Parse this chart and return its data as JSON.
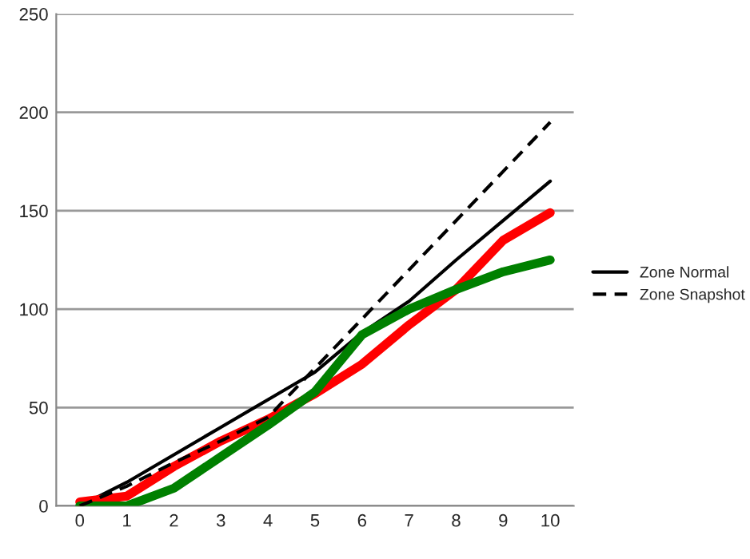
{
  "chart_data": {
    "type": "line",
    "categories": [
      "0",
      "1",
      "2",
      "3",
      "4",
      "5",
      "6",
      "7",
      "8",
      "9",
      "10"
    ],
    "series": [
      {
        "name": "Zone Normal",
        "color": "#000000",
        "line_style": "solid",
        "values": [
          0,
          12,
          26,
          40,
          54,
          68,
          88,
          104,
          125,
          145,
          165
        ]
      },
      {
        "name": "Zone Snapshot",
        "color": "#000000",
        "line_style": "dashed",
        "values": [
          0,
          10,
          22,
          33,
          45,
          70,
          95,
          120,
          145,
          170,
          195
        ]
      },
      {
        "color": "#ff0000",
        "line_style": "solid",
        "values": [
          2,
          5,
          20,
          33,
          44,
          57,
          72,
          92,
          110,
          135,
          149
        ]
      },
      {
        "color": "#008000",
        "line_style": "solid",
        "values": [
          0,
          0,
          9,
          25,
          41,
          58,
          87,
          100,
          110,
          119,
          125
        ]
      }
    ],
    "ylim": [
      0,
      250
    ],
    "yticks": [
      0,
      50,
      100,
      150,
      200,
      250
    ],
    "grid": "y",
    "legend": "right",
    "marker": "none"
  }
}
